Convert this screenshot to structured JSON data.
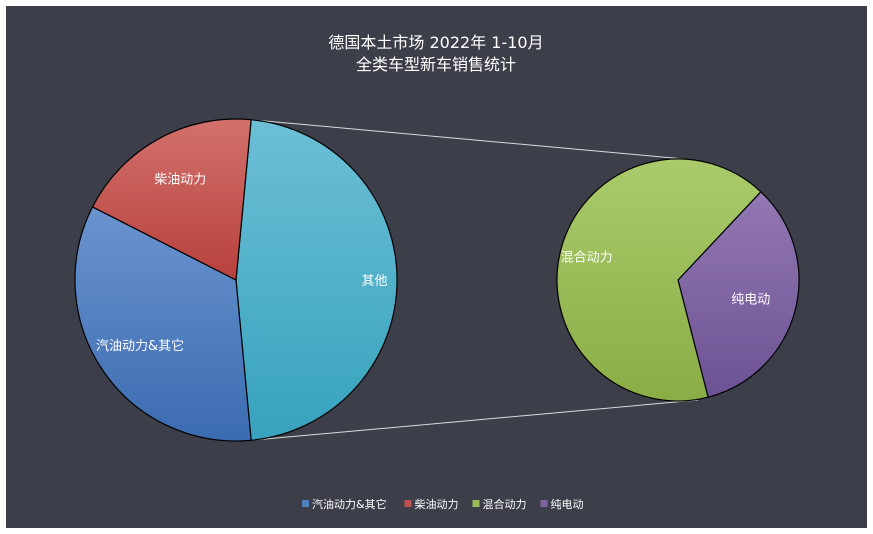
{
  "chart_data": {
    "type": "pie",
    "subtype": "pie-of-pie",
    "title": [
      "德国本土市场 2022年 1-10月",
      "全类车型新车销售统计"
    ],
    "main_pie": {
      "slices": [
        {
          "label": "汽油动力&其它",
          "value": 34,
          "color": "#4f81bd"
        },
        {
          "label": "柴油动力",
          "value": 19,
          "color": "#c0504d"
        },
        {
          "label": "其他",
          "value": 47,
          "color": "#4bacc6"
        }
      ]
    },
    "secondary_pie": {
      "slices": [
        {
          "label": "混合动力",
          "value": 66,
          "color": "#9bbb59"
        },
        {
          "label": "纯电动",
          "value": 34,
          "color": "#8064a2"
        }
      ]
    },
    "legend": {
      "position": "bottom",
      "entries": [
        {
          "label": "汽油动力&其它",
          "color": "#4f81bd"
        },
        {
          "label": "柴油动力",
          "color": "#c0504d"
        },
        {
          "label": "混合动力",
          "color": "#9bbb59"
        },
        {
          "label": "纯电动",
          "color": "#8064a2"
        }
      ]
    },
    "background": "#3c3f49"
  }
}
